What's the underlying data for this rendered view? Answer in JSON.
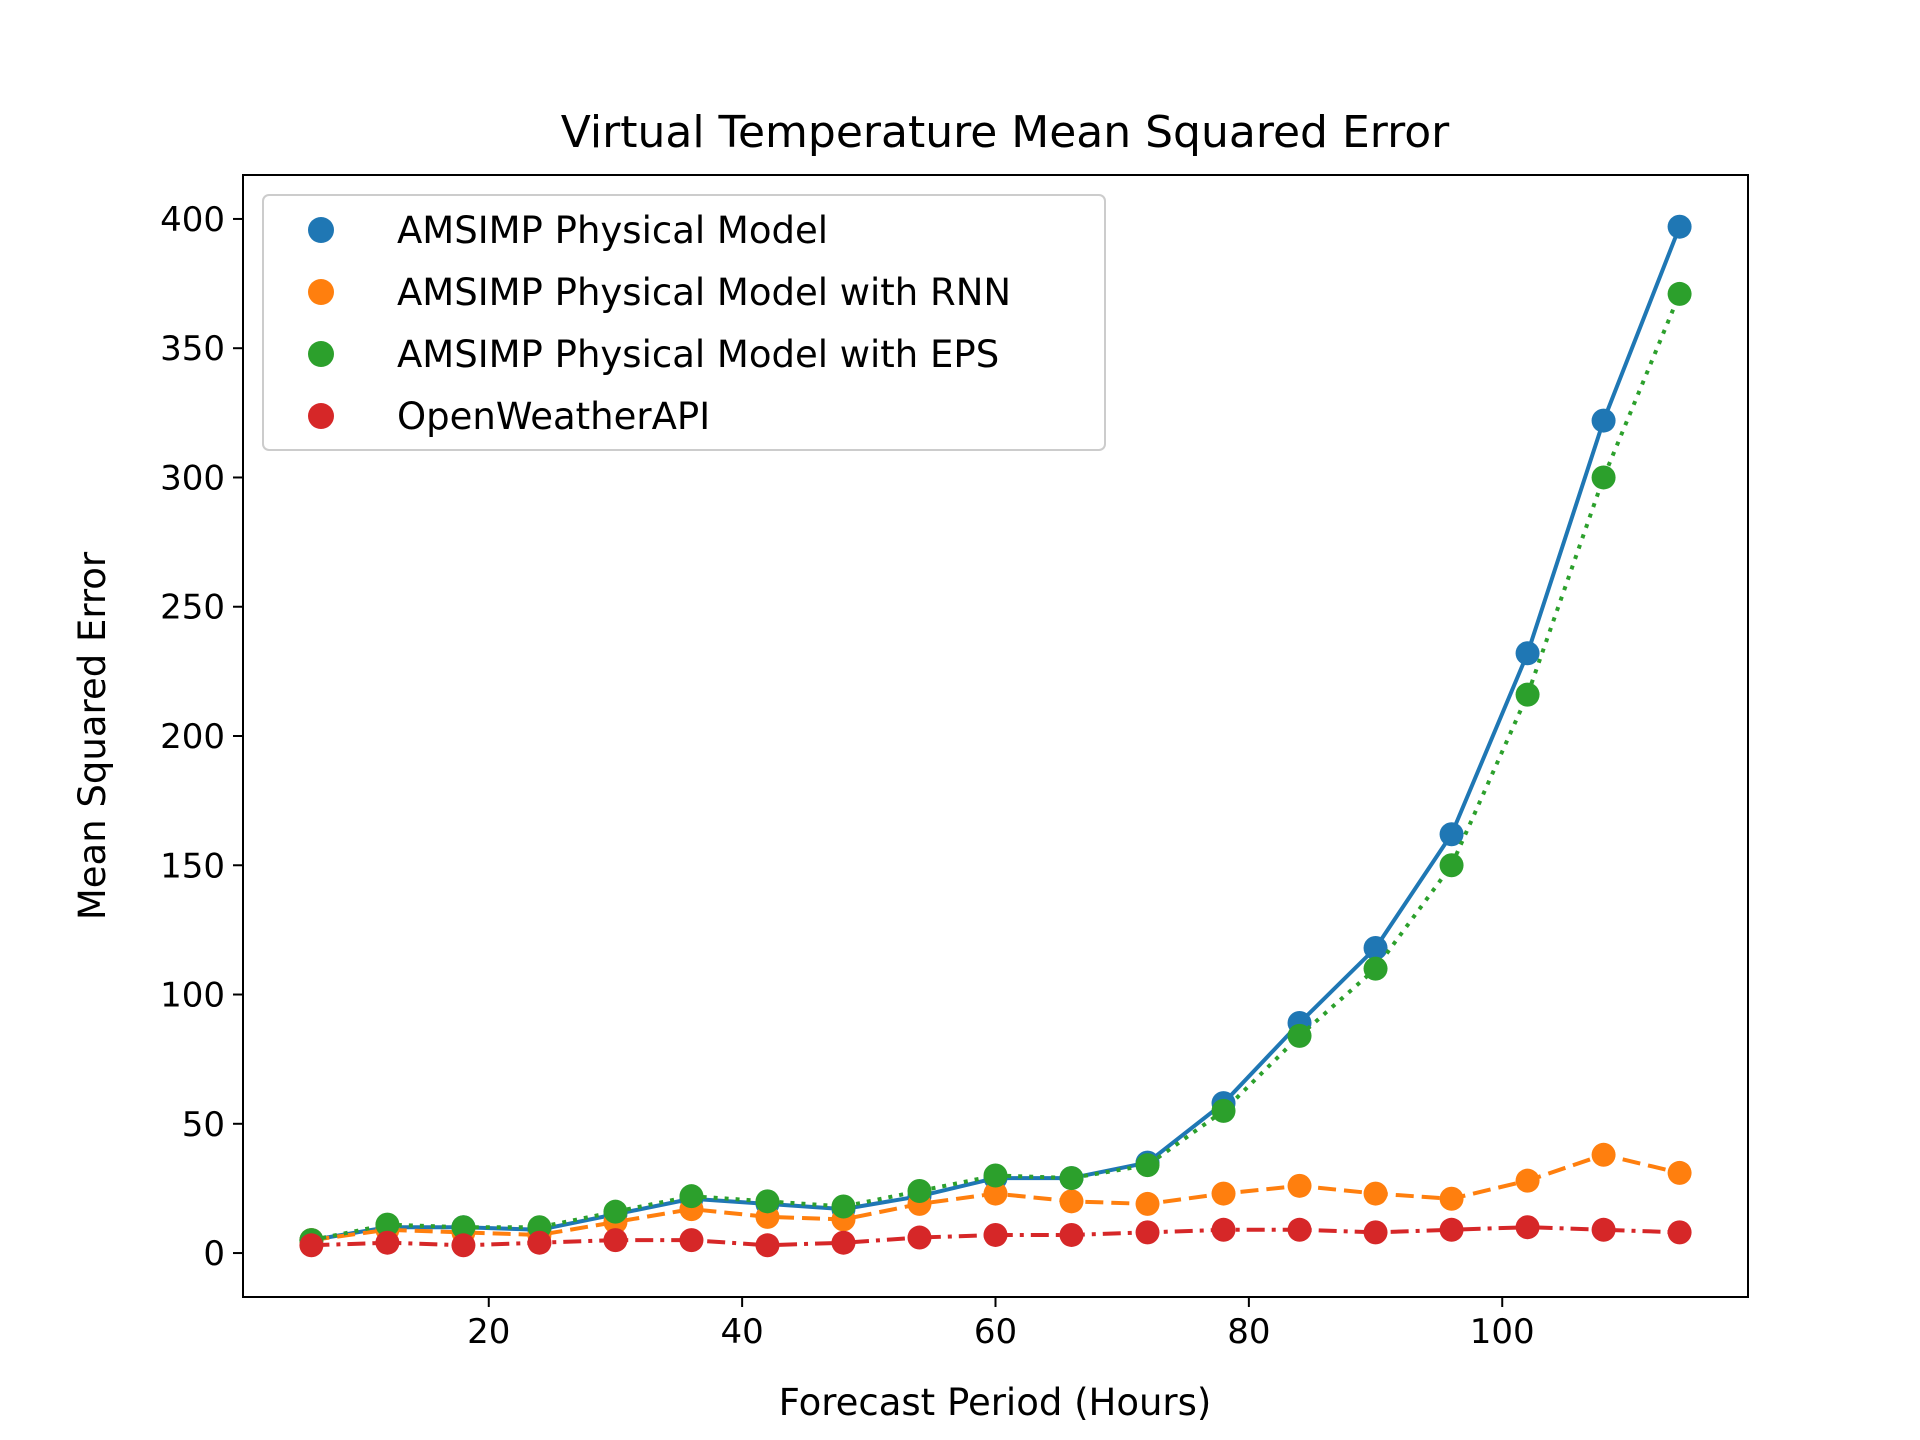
{
  "chart_data": {
    "type": "line",
    "title": "Virtual Temperature Mean Squared Error",
    "xlabel": "Forecast Period (Hours)",
    "ylabel": "Mean Squared Error",
    "xlim": [
      0.6,
      119.4
    ],
    "ylim": [
      -17,
      417
    ],
    "xticks": [
      20,
      40,
      60,
      80,
      100
    ],
    "yticks": [
      0,
      50,
      100,
      150,
      200,
      250,
      300,
      350,
      400
    ],
    "grid": false,
    "legend_position": "top-left",
    "x": [
      6,
      12,
      18,
      24,
      30,
      36,
      42,
      48,
      54,
      60,
      66,
      72,
      78,
      84,
      90,
      96,
      102,
      108,
      114
    ],
    "series": [
      {
        "name": "AMSIMP Physical Model",
        "color": "#1f77b4",
        "line_style": "solid",
        "values": [
          5,
          10,
          10,
          9,
          15,
          21,
          19,
          17,
          22,
          29,
          29,
          35,
          58,
          89,
          118,
          162,
          232,
          322,
          397
        ]
      },
      {
        "name": "AMSIMP Physical Model with RNN",
        "color": "#ff7f0e",
        "line_style": "dashed",
        "values": [
          5,
          9,
          8,
          7,
          12,
          17,
          14,
          13,
          19,
          23,
          20,
          19,
          23,
          26,
          23,
          21,
          28,
          38,
          31
        ]
      },
      {
        "name": "AMSIMP Physical Model with EPS",
        "color": "#2ca02c",
        "line_style": "dotted",
        "values": [
          5,
          11,
          10,
          10,
          16,
          22,
          20,
          18,
          24,
          30,
          29,
          34,
          55,
          84,
          110,
          150,
          216,
          300,
          371
        ]
      },
      {
        "name": "OpenWeatherAPI",
        "color": "#d62728",
        "line_style": "dashdot",
        "values": [
          3,
          4,
          3,
          4,
          5,
          5,
          3,
          4,
          6,
          7,
          7,
          8,
          9,
          9,
          8,
          9,
          10,
          9,
          8
        ]
      }
    ]
  }
}
